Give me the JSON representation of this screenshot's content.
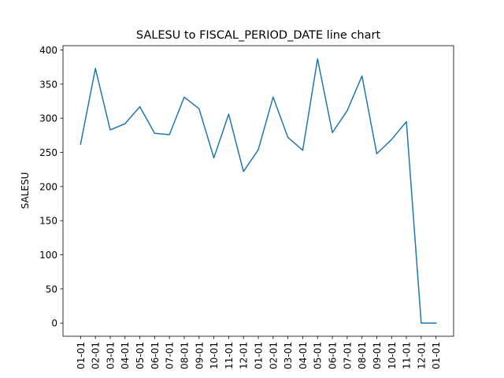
{
  "chart_data": {
    "type": "line",
    "title": "SALESU to FISCAL_PERIOD_DATE line chart",
    "xlabel": "",
    "ylabel": "SALESU",
    "categories": [
      "01-01",
      "02-01",
      "03-01",
      "04-01",
      "05-01",
      "06-01",
      "07-01",
      "08-01",
      "09-01",
      "10-01",
      "11-01",
      "12-01",
      "01-01",
      "02-01",
      "03-01",
      "04-01",
      "05-01",
      "06-01",
      "07-01",
      "08-01",
      "09-01",
      "10-01",
      "11-01",
      "12-01",
      "01-01"
    ],
    "series": [
      {
        "values": [
          262,
          373,
          283,
          292,
          317,
          278,
          276,
          331,
          314,
          242,
          306,
          222,
          254,
          331,
          272,
          253,
          387,
          279,
          311,
          362,
          248,
          269,
          295,
          0,
          0
        ],
        "color": "#1f77b4"
      }
    ],
    "ylim": [
      -19.35,
      406.35
    ],
    "yticks": [
      0,
      50,
      100,
      150,
      200,
      250,
      300,
      350,
      400
    ],
    "grid": false,
    "legend": "none"
  }
}
